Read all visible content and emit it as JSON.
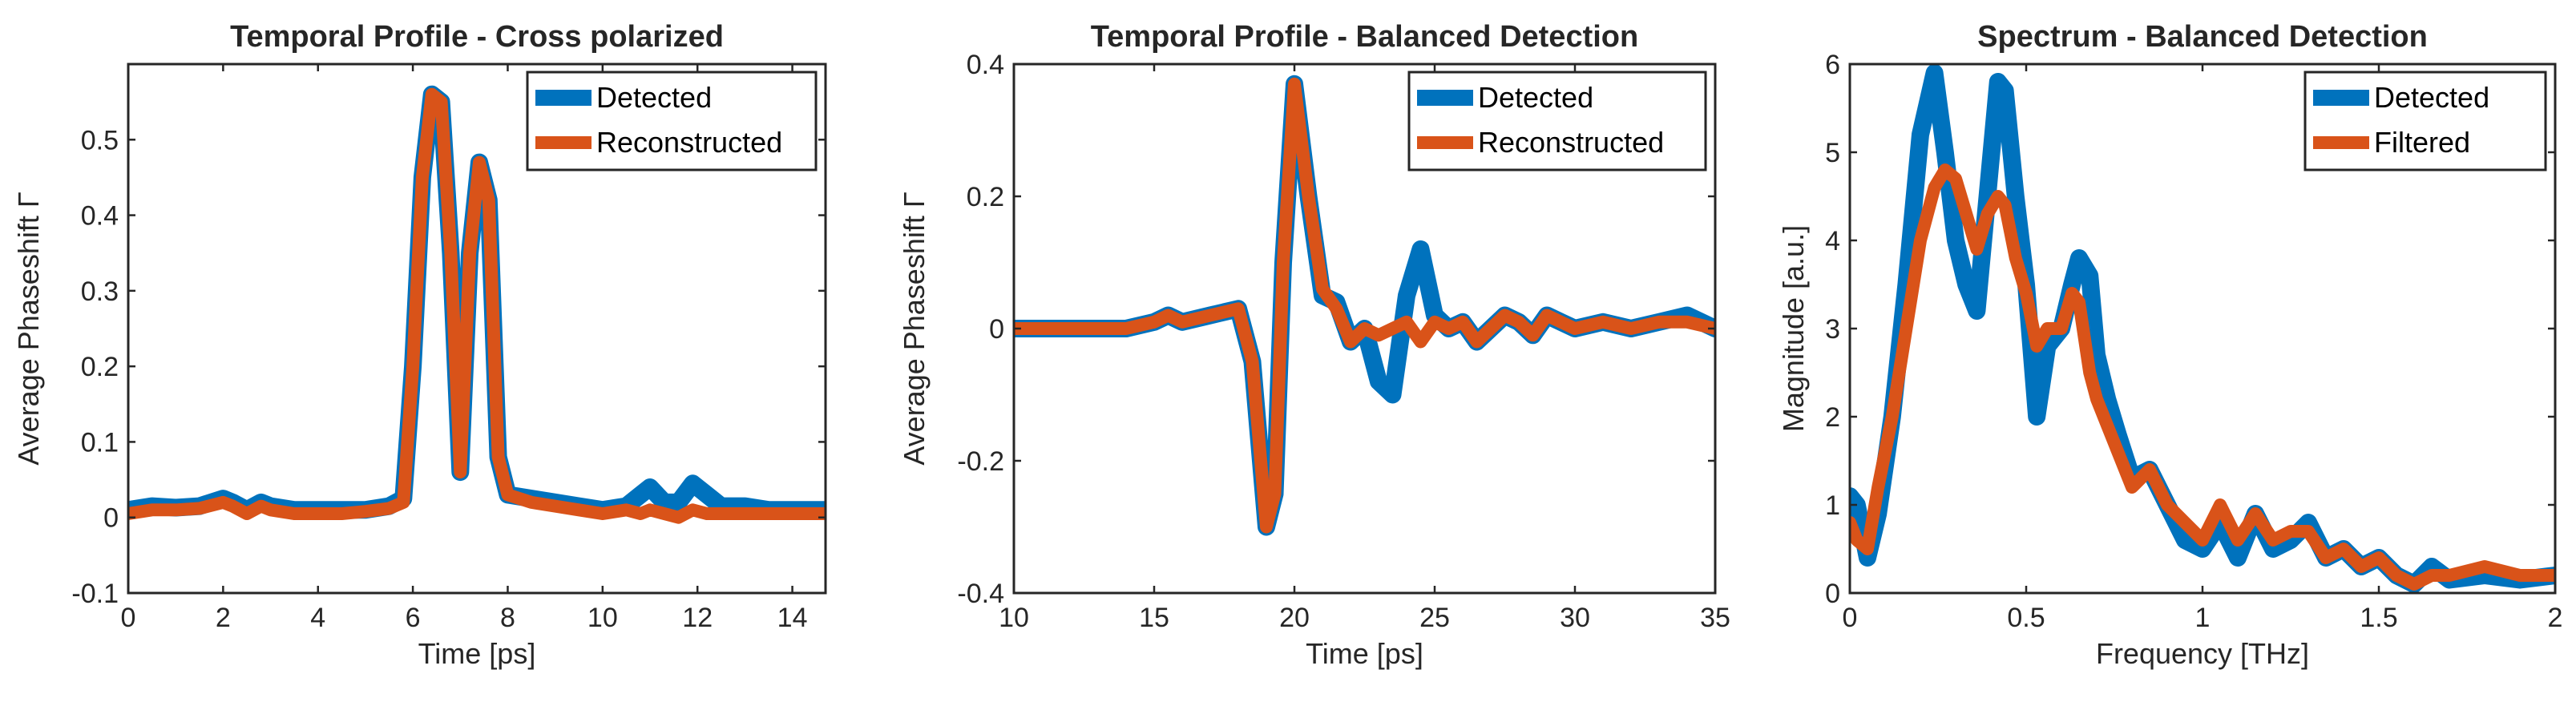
{
  "colors": {
    "detected": "#0072BD",
    "second": "#D95319"
  },
  "chart_data": [
    {
      "type": "line",
      "title": "Temporal Profile - Cross polarized",
      "xlabel": "Time [ps]",
      "ylabel": "Average Phaseshift Γ",
      "xlim": [
        0,
        14.7
      ],
      "ylim": [
        -0.1,
        0.6
      ],
      "xticks": [
        0,
        2,
        4,
        6,
        8,
        10,
        12,
        14
      ],
      "xtick_labels": [
        "0",
        "2",
        "4",
        "6",
        "8",
        "10",
        "12",
        "14"
      ],
      "yticks": [
        -0.1,
        0,
        0.1,
        0.2,
        0.3,
        0.4,
        0.5
      ],
      "ytick_labels": [
        "-0.1",
        "0",
        "0.1",
        "0.2",
        "0.3",
        "0.4",
        "0.5"
      ],
      "legend_position": "top-right",
      "series": [
        {
          "name": "Detected",
          "color": "#0072BD",
          "x": [
            0,
            0.5,
            1,
            1.5,
            2,
            2.2,
            2.5,
            2.8,
            3,
            3.5,
            4,
            4.5,
            5,
            5.5,
            5.8,
            6,
            6.2,
            6.4,
            6.6,
            6.8,
            7,
            7.2,
            7.4,
            7.6,
            7.8,
            8,
            8.5,
            9,
            9.5,
            10,
            10.5,
            10.8,
            11,
            11.3,
            11.6,
            11.9,
            12.2,
            12.5,
            13,
            13.5,
            14,
            14.7
          ],
          "y": [
            0.01,
            0.015,
            0.013,
            0.015,
            0.025,
            0.02,
            0.01,
            0.02,
            0.015,
            0.01,
            0.01,
            0.01,
            0.01,
            0.015,
            0.025,
            0.2,
            0.45,
            0.56,
            0.55,
            0.35,
            0.06,
            0.35,
            0.47,
            0.42,
            0.08,
            0.03,
            0.025,
            0.02,
            0.015,
            0.01,
            0.015,
            0.03,
            0.04,
            0.02,
            0.02,
            0.045,
            0.03,
            0.015,
            0.015,
            0.01,
            0.01,
            0.01
          ]
        },
        {
          "name": "Reconstructed",
          "color": "#D95319",
          "x": [
            0,
            0.5,
            1,
            1.5,
            2,
            2.2,
            2.5,
            2.8,
            3,
            3.5,
            4,
            4.5,
            5,
            5.5,
            5.8,
            6,
            6.2,
            6.4,
            6.6,
            6.8,
            7,
            7.2,
            7.4,
            7.6,
            7.8,
            8,
            8.5,
            9,
            9.5,
            10,
            10.5,
            10.8,
            11,
            11.3,
            11.6,
            11.9,
            12.2,
            12.5,
            13,
            13.5,
            14,
            14.7
          ],
          "y": [
            0.005,
            0.01,
            0.01,
            0.012,
            0.02,
            0.015,
            0.005,
            0.015,
            0.01,
            0.005,
            0.005,
            0.005,
            0.008,
            0.012,
            0.02,
            0.2,
            0.45,
            0.56,
            0.55,
            0.35,
            0.06,
            0.35,
            0.47,
            0.42,
            0.08,
            0.03,
            0.02,
            0.015,
            0.01,
            0.005,
            0.01,
            0.005,
            0.01,
            0.005,
            0.0,
            0.01,
            0.005,
            0.005,
            0.005,
            0.005,
            0.005,
            0.005
          ]
        }
      ]
    },
    {
      "type": "line",
      "title": "Temporal Profile - Balanced Detection",
      "xlabel": "Time [ps]",
      "ylabel": "Average Phaseshift Γ",
      "xlim": [
        10,
        35
      ],
      "ylim": [
        -0.4,
        0.4
      ],
      "xticks": [
        10,
        15,
        20,
        25,
        30,
        35
      ],
      "xtick_labels": [
        "10",
        "15",
        "20",
        "25",
        "30",
        "35"
      ],
      "yticks": [
        -0.4,
        -0.2,
        0,
        0.2,
        0.4
      ],
      "ytick_labels": [
        "-0.4",
        "-0.2",
        "0",
        "0.2",
        "0.4"
      ],
      "legend_position": "top-right",
      "series": [
        {
          "name": "Detected",
          "color": "#0072BD",
          "x": [
            10,
            12,
            14,
            15,
            15.5,
            16,
            17,
            18,
            18.5,
            19,
            19.3,
            19.6,
            20,
            20.5,
            21,
            21.5,
            22,
            22.5,
            23,
            23.5,
            24,
            24.5,
            25,
            25.5,
            26,
            26.5,
            27,
            27.5,
            28,
            28.5,
            29,
            29.5,
            30,
            31,
            32,
            33,
            34,
            35
          ],
          "y": [
            0.0,
            0.0,
            0.0,
            0.01,
            0.02,
            0.01,
            0.02,
            0.03,
            -0.05,
            -0.3,
            -0.25,
            0.1,
            0.37,
            0.2,
            0.05,
            0.04,
            -0.02,
            0.0,
            -0.08,
            -0.1,
            0.05,
            0.12,
            0.02,
            0.0,
            0.01,
            -0.02,
            0.0,
            0.02,
            0.01,
            -0.01,
            0.02,
            0.01,
            0.0,
            0.01,
            0.0,
            0.01,
            0.02,
            0.0
          ]
        },
        {
          "name": "Reconstructed",
          "color": "#D95319",
          "x": [
            10,
            12,
            14,
            15,
            15.5,
            16,
            17,
            18,
            18.5,
            19,
            19.3,
            19.6,
            20,
            20.5,
            21,
            21.5,
            22,
            22.5,
            23,
            23.5,
            24,
            24.5,
            25,
            25.5,
            26,
            26.5,
            27,
            27.5,
            28,
            28.5,
            29,
            29.5,
            30,
            31,
            32,
            33,
            34,
            35
          ],
          "y": [
            0.0,
            0.0,
            0.0,
            0.01,
            0.02,
            0.01,
            0.02,
            0.03,
            -0.05,
            -0.3,
            -0.25,
            0.1,
            0.37,
            0.2,
            0.06,
            0.03,
            -0.02,
            0.0,
            -0.01,
            0.0,
            0.01,
            -0.02,
            0.01,
            0.0,
            0.01,
            -0.02,
            0.0,
            0.02,
            0.01,
            -0.01,
            0.02,
            0.01,
            0.0,
            0.01,
            0.0,
            0.01,
            0.01,
            0.0
          ]
        }
      ]
    },
    {
      "type": "line",
      "title": "Spectrum - Balanced Detection",
      "xlabel": "Frequency [THz]",
      "ylabel": "Magnitude [a.u.]",
      "xlim": [
        0,
        2
      ],
      "ylim": [
        0,
        6
      ],
      "xticks": [
        0,
        0.5,
        1,
        1.5,
        2
      ],
      "xtick_labels": [
        "0",
        "0.5",
        "1",
        "1.5",
        "2"
      ],
      "yticks": [
        0,
        1,
        2,
        3,
        4,
        5,
        6
      ],
      "ytick_labels": [
        "0",
        "1",
        "2",
        "3",
        "4",
        "5",
        "6"
      ],
      "legend_position": "top-right",
      "series": [
        {
          "name": "Detected",
          "color": "#0072BD",
          "x": [
            0,
            0.02,
            0.05,
            0.08,
            0.12,
            0.16,
            0.2,
            0.24,
            0.27,
            0.3,
            0.33,
            0.36,
            0.39,
            0.42,
            0.44,
            0.47,
            0.5,
            0.53,
            0.56,
            0.6,
            0.63,
            0.65,
            0.68,
            0.7,
            0.73,
            0.76,
            0.8,
            0.85,
            0.9,
            0.95,
            1.0,
            1.05,
            1.1,
            1.15,
            1.2,
            1.25,
            1.3,
            1.35,
            1.4,
            1.45,
            1.5,
            1.55,
            1.6,
            1.65,
            1.7,
            1.8,
            1.9,
            2.0
          ],
          "y": [
            1.1,
            1.0,
            0.4,
            0.9,
            2.0,
            3.5,
            5.2,
            5.9,
            5.0,
            4.0,
            3.5,
            3.2,
            4.5,
            5.8,
            5.7,
            4.5,
            3.5,
            2.0,
            2.8,
            3.0,
            3.5,
            3.8,
            3.6,
            2.7,
            2.2,
            1.8,
            1.3,
            1.4,
            1.0,
            0.6,
            0.5,
            0.8,
            0.4,
            0.9,
            0.5,
            0.6,
            0.8,
            0.4,
            0.5,
            0.3,
            0.4,
            0.2,
            0.1,
            0.3,
            0.15,
            0.2,
            0.15,
            0.2
          ]
        },
        {
          "name": "Filtered",
          "color": "#D95319",
          "x": [
            0,
            0.02,
            0.05,
            0.08,
            0.12,
            0.16,
            0.2,
            0.24,
            0.27,
            0.3,
            0.33,
            0.36,
            0.39,
            0.42,
            0.44,
            0.47,
            0.5,
            0.53,
            0.56,
            0.6,
            0.63,
            0.65,
            0.68,
            0.7,
            0.73,
            0.76,
            0.8,
            0.85,
            0.9,
            0.95,
            1.0,
            1.05,
            1.1,
            1.15,
            1.2,
            1.25,
            1.3,
            1.35,
            1.4,
            1.45,
            1.5,
            1.55,
            1.6,
            1.65,
            1.7,
            1.8,
            1.9,
            2.0
          ],
          "y": [
            0.8,
            0.6,
            0.5,
            1.2,
            2.0,
            3.0,
            4.0,
            4.6,
            4.8,
            4.7,
            4.3,
            3.9,
            4.3,
            4.5,
            4.4,
            3.8,
            3.4,
            2.8,
            3.0,
            3.0,
            3.4,
            3.3,
            2.5,
            2.2,
            1.9,
            1.6,
            1.2,
            1.4,
            1.0,
            0.8,
            0.6,
            1.0,
            0.6,
            0.9,
            0.6,
            0.7,
            0.7,
            0.4,
            0.5,
            0.3,
            0.4,
            0.2,
            0.1,
            0.2,
            0.2,
            0.3,
            0.2,
            0.2
          ]
        }
      ]
    }
  ]
}
